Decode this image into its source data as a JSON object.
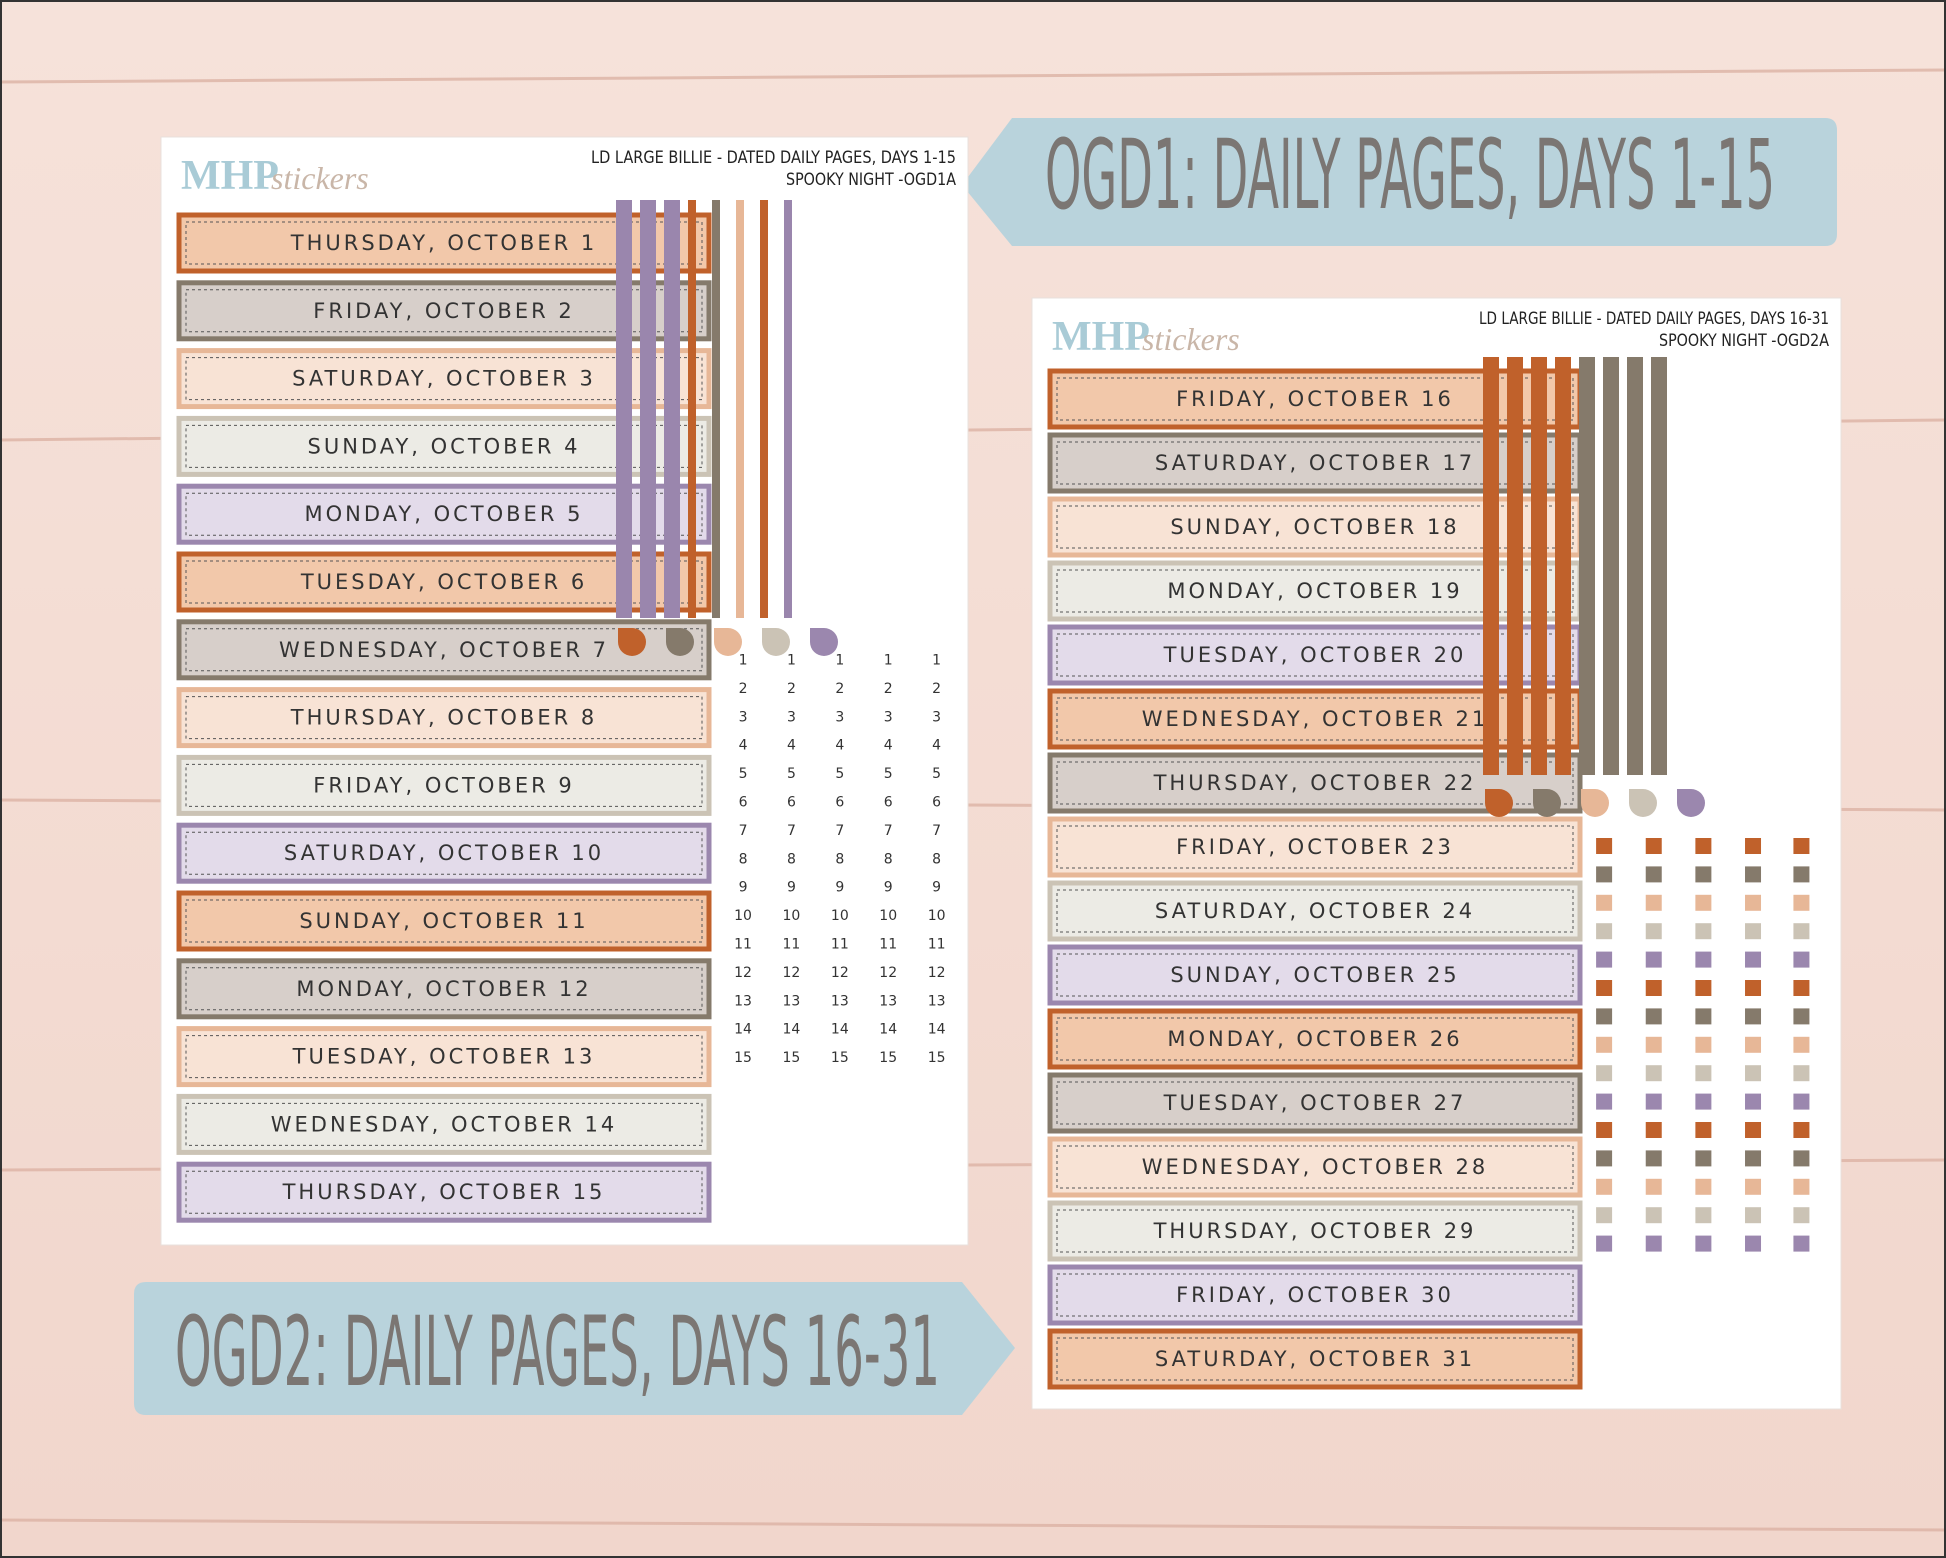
{
  "banners": [
    "OGD1: DAILY PAGES, DAYS 1-15",
    "OGD2: DAILY PAGES, DAYS 16-31"
  ],
  "sheets": [
    {
      "brand": "MHP",
      "brand_script": "stickers",
      "header_lines": [
        "LD LARGE BILLIE  -  DATED DAILY PAGES, DAYS 1-15",
        "SPOOKY NIGHT -OGD1A"
      ],
      "labels": [
        "THURSDAY, OCTOBER 1",
        "FRIDAY, OCTOBER 2",
        "SATURDAY, OCTOBER 3",
        "SUNDAY, OCTOBER 4",
        "MONDAY, OCTOBER 5",
        "TUESDAY, OCTOBER 6",
        "WEDNESDAY, OCTOBER 7",
        "THURSDAY, OCTOBER 8",
        "FRIDAY, OCTOBER 9",
        "SATURDAY, OCTOBER 10",
        "SUNDAY, OCTOBER 11",
        "MONDAY, OCTOBER 12",
        "TUESDAY, OCTOBER 13",
        "WEDNESDAY, OCTOBER 14",
        "THURSDAY, OCTOBER 15"
      ],
      "numbers": [
        1,
        2,
        3,
        4,
        5,
        6,
        7,
        8,
        9,
        10,
        11,
        12,
        13,
        14,
        15
      ]
    },
    {
      "brand": "MHP",
      "brand_script": "stickers",
      "header_lines": [
        "LD LARGE BILLIE - DATED DAILY PAGES, DAYS 16-31",
        "SPOOKY NIGHT -OGD2A"
      ],
      "labels": [
        "FRIDAY, OCTOBER 16",
        "SATURDAY, OCTOBER 17",
        "SUNDAY, OCTOBER 18",
        "MONDAY, OCTOBER 19",
        "TUESDAY, OCTOBER 20",
        "WEDNESDAY, OCTOBER 21",
        "THURSDAY, OCTOBER 22",
        "FRIDAY, OCTOBER 23",
        "SATURDAY, OCTOBER 24",
        "SUNDAY, OCTOBER 25",
        "MONDAY, OCTOBER 26",
        "TUESDAY, OCTOBER 27",
        "WEDNESDAY, OCTOBER 28",
        "THURSDAY, OCTOBER 29",
        "FRIDAY, OCTOBER 30",
        "SATURDAY, OCTOBER 31"
      ]
    }
  ]
}
